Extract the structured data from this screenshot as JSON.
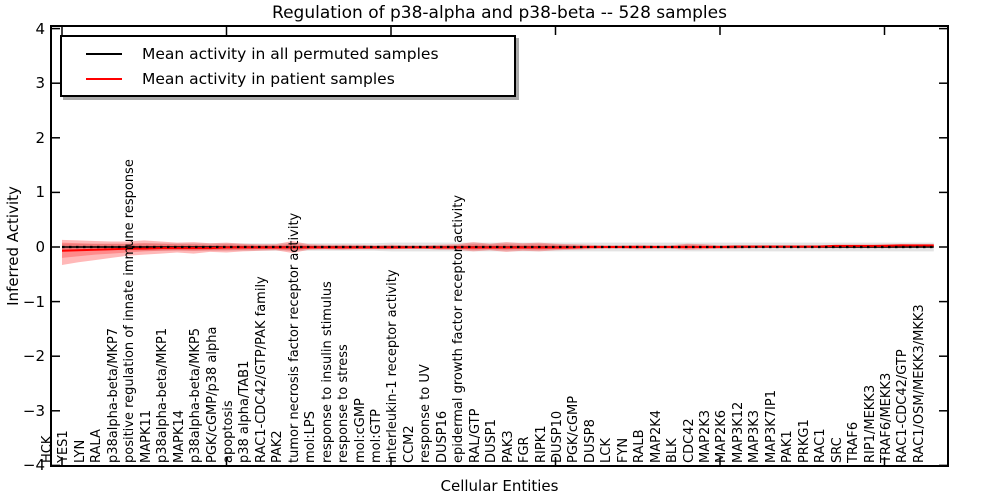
{
  "chart_data": {
    "type": "line",
    "title": "Regulation of p38-alpha and p38-beta -- 528 samples",
    "xlabel": "Cellular Entities",
    "ylabel": "Inferred Activity",
    "ylim": [
      -4,
      4
    ],
    "yticks": [
      4,
      3,
      2,
      1,
      0,
      -1,
      -2,
      -3,
      -4
    ],
    "ytick_labels": [
      "4",
      "3",
      "2",
      "1",
      "0",
      "−1",
      "−2",
      "−3",
      "−4"
    ],
    "xtick_indices": [
      0,
      10,
      20,
      30,
      40,
      50
    ],
    "grid": false,
    "legend_position": "upper left",
    "categories": [
      "HCK",
      "YES1",
      "LYN",
      "RALA",
      "p38alpha-beta/MKP7",
      "positive regulation of innate immune response",
      "MAPK11",
      "p38alpha-beta/MKP1",
      "MAPK14",
      "p38alpha-beta/MKP5",
      "PGK/cGMP/p38 alpha",
      "apoptosis",
      "p38 alpha/TAB1",
      "RAC1-CDC42/GTP/PAK family",
      "PAK2",
      "tumor necrosis factor receptor activity",
      "mol:LPS",
      "response to insulin stimulus",
      "response to stress",
      "mol:cGMP",
      "mol:GTP",
      "interleukin-1 receptor activity",
      "CCM2",
      "response to UV",
      "DUSP16",
      "epidermal growth factor receptor activity",
      "RAL/GTP",
      "DUSP1",
      "PAK3",
      "FGR",
      "RIPK1",
      "DUSP10",
      "PGK/cGMP",
      "DUSP8",
      "LCK",
      "FYN",
      "RALB",
      "MAP2K4",
      "BLK",
      "CDC42",
      "MAP2K3",
      "MAP2K6",
      "MAP3K12",
      "MAP3K3",
      "MAP3K7IP1",
      "PAK1",
      "PRKG1",
      "RAC1",
      "SRC",
      "TRAF6",
      "RIP1/MEKK3",
      "TRAF6/MEKK3",
      "RAC1-CDC42/GTP",
      "RAC1/OSM/MEKK3/MKK3"
    ],
    "series": [
      {
        "name": "Mean activity in all permuted samples",
        "color": "#000000",
        "values": [
          0,
          0,
          0,
          0,
          0,
          0,
          0,
          0,
          0,
          0,
          0,
          0,
          0,
          0,
          0,
          0,
          0,
          0,
          0,
          0,
          0,
          0,
          0,
          0,
          0,
          0,
          0,
          0,
          0,
          0,
          0,
          0,
          0,
          0,
          0,
          0,
          0,
          0,
          0,
          0,
          0,
          0,
          0,
          0,
          0,
          0,
          0,
          0,
          0,
          0,
          0,
          0,
          0,
          0
        ]
      },
      {
        "name": "Mean activity in patient samples",
        "color": "#ff0000",
        "values": [
          -0.07,
          -0.06,
          -0.05,
          -0.04,
          -0.03,
          -0.03,
          -0.02,
          -0.02,
          -0.02,
          -0.02,
          -0.01,
          -0.01,
          -0.01,
          -0.01,
          -0.01,
          -0.01,
          -0.01,
          -0.01,
          -0.01,
          -0.01,
          -0.01,
          -0.01,
          -0.01,
          -0.01,
          -0.01,
          -0.01,
          -0.01,
          -0.01,
          -0.01,
          -0.01,
          -0.01,
          -0.01,
          0.0,
          0.0,
          0.0,
          0.0,
          0.0,
          0.0,
          0.0,
          0.0,
          0.0,
          0.01,
          0.01,
          0.01,
          0.01,
          0.01,
          0.01,
          0.02,
          0.02,
          0.02,
          0.02,
          0.03,
          0.03,
          0.03
        ]
      }
    ],
    "reference_line": {
      "y": 0,
      "style": "dotted",
      "color": "#000000"
    },
    "bands": [
      {
        "name": "permuted-samples-range",
        "color": "#999999",
        "opacity": 0.28,
        "upper": [
          0.06,
          0.06,
          0.06,
          0.06,
          0.06,
          0.07,
          0.07,
          0.07,
          0.07,
          0.07,
          0.07,
          0.07,
          0.07,
          0.07,
          0.07,
          0.07,
          0.07,
          0.07,
          0.07,
          0.07,
          0.08,
          0.08,
          0.08,
          0.08,
          0.08,
          0.08,
          0.08,
          0.08,
          0.08,
          0.08,
          0.08,
          0.08,
          0.08,
          0.08,
          0.08,
          0.08,
          0.08,
          0.08,
          0.08,
          0.08,
          0.08,
          0.08,
          0.08,
          0.08,
          0.08,
          0.08,
          0.08,
          0.08,
          0.08,
          0.08,
          0.08,
          0.08,
          0.08,
          0.08
        ],
        "lower": [
          -0.06,
          -0.06,
          -0.06,
          -0.06,
          -0.06,
          -0.07,
          -0.07,
          -0.07,
          -0.07,
          -0.07,
          -0.07,
          -0.07,
          -0.07,
          -0.07,
          -0.07,
          -0.07,
          -0.07,
          -0.07,
          -0.07,
          -0.07,
          -0.08,
          -0.08,
          -0.08,
          -0.08,
          -0.08,
          -0.08,
          -0.08,
          -0.08,
          -0.08,
          -0.08,
          -0.08,
          -0.08,
          -0.08,
          -0.08,
          -0.08,
          -0.08,
          -0.08,
          -0.08,
          -0.08,
          -0.08,
          -0.08,
          -0.08,
          -0.08,
          -0.08,
          -0.08,
          -0.08,
          -0.08,
          -0.08,
          -0.08,
          -0.08,
          -0.08,
          -0.08,
          -0.08,
          -0.08
        ]
      },
      {
        "name": "patient-samples-range-outer",
        "color": "#ff0000",
        "opacity": 0.28,
        "upper": [
          0.13,
          0.12,
          0.11,
          0.1,
          0.1,
          0.12,
          0.1,
          0.08,
          0.09,
          0.07,
          0.08,
          0.06,
          0.05,
          0.05,
          0.11,
          0.05,
          0.04,
          0.04,
          0.04,
          0.03,
          0.04,
          0.03,
          0.03,
          0.04,
          0.05,
          0.09,
          0.06,
          0.09,
          0.07,
          0.08,
          0.06,
          0.05,
          0.04,
          0.03,
          0.03,
          0.04,
          0.03,
          0.03,
          0.06,
          0.05,
          0.03,
          0.03,
          0.02,
          0.03,
          0.02,
          0.02,
          0.02,
          0.02,
          0.03,
          0.03,
          0.05,
          0.05,
          0.04,
          0.04
        ],
        "lower": [
          -0.33,
          -0.28,
          -0.24,
          -0.2,
          -0.16,
          -0.14,
          -0.12,
          -0.1,
          -0.12,
          -0.09,
          -0.1,
          -0.08,
          -0.07,
          -0.06,
          -0.11,
          -0.05,
          -0.04,
          -0.05,
          -0.04,
          -0.04,
          -0.04,
          -0.03,
          -0.03,
          -0.05,
          -0.05,
          -0.08,
          -0.06,
          -0.09,
          -0.07,
          -0.08,
          -0.06,
          -0.05,
          -0.04,
          -0.03,
          -0.03,
          -0.04,
          -0.03,
          -0.03,
          -0.05,
          -0.04,
          -0.03,
          -0.03,
          -0.02,
          -0.02,
          -0.02,
          -0.02,
          -0.02,
          -0.02,
          -0.02,
          -0.02,
          -0.02,
          -0.02,
          -0.01,
          -0.01
        ]
      },
      {
        "name": "patient-samples-range-inner",
        "color": "#ff0000",
        "opacity": 0.25,
        "upper": [
          0.08,
          0.07,
          0.06,
          0.06,
          0.06,
          0.07,
          0.06,
          0.05,
          0.05,
          0.04,
          0.05,
          0.04,
          0.03,
          0.03,
          0.06,
          0.03,
          0.02,
          0.02,
          0.02,
          0.02,
          0.02,
          0.02,
          0.02,
          0.02,
          0.03,
          0.05,
          0.04,
          0.05,
          0.04,
          0.05,
          0.04,
          0.03,
          0.02,
          0.02,
          0.02,
          0.02,
          0.02,
          0.02,
          0.04,
          0.03,
          0.02,
          0.02,
          0.01,
          0.02,
          0.01,
          0.01,
          0.01,
          0.01,
          0.02,
          0.02,
          0.03,
          0.03,
          0.03,
          0.03
        ],
        "lower": [
          -0.2,
          -0.17,
          -0.14,
          -0.12,
          -0.1,
          -0.08,
          -0.07,
          -0.06,
          -0.07,
          -0.06,
          -0.06,
          -0.05,
          -0.04,
          -0.04,
          -0.07,
          -0.03,
          -0.02,
          -0.03,
          -0.02,
          -0.02,
          -0.02,
          -0.02,
          -0.02,
          -0.03,
          -0.03,
          -0.05,
          -0.04,
          -0.05,
          -0.04,
          -0.05,
          -0.04,
          -0.03,
          -0.02,
          -0.02,
          -0.02,
          -0.02,
          -0.02,
          -0.02,
          -0.03,
          -0.02,
          -0.02,
          -0.02,
          -0.01,
          -0.01,
          -0.01,
          -0.01,
          -0.01,
          -0.01,
          -0.01,
          -0.01,
          0.0,
          0.0,
          0.0,
          0.0
        ]
      }
    ]
  }
}
